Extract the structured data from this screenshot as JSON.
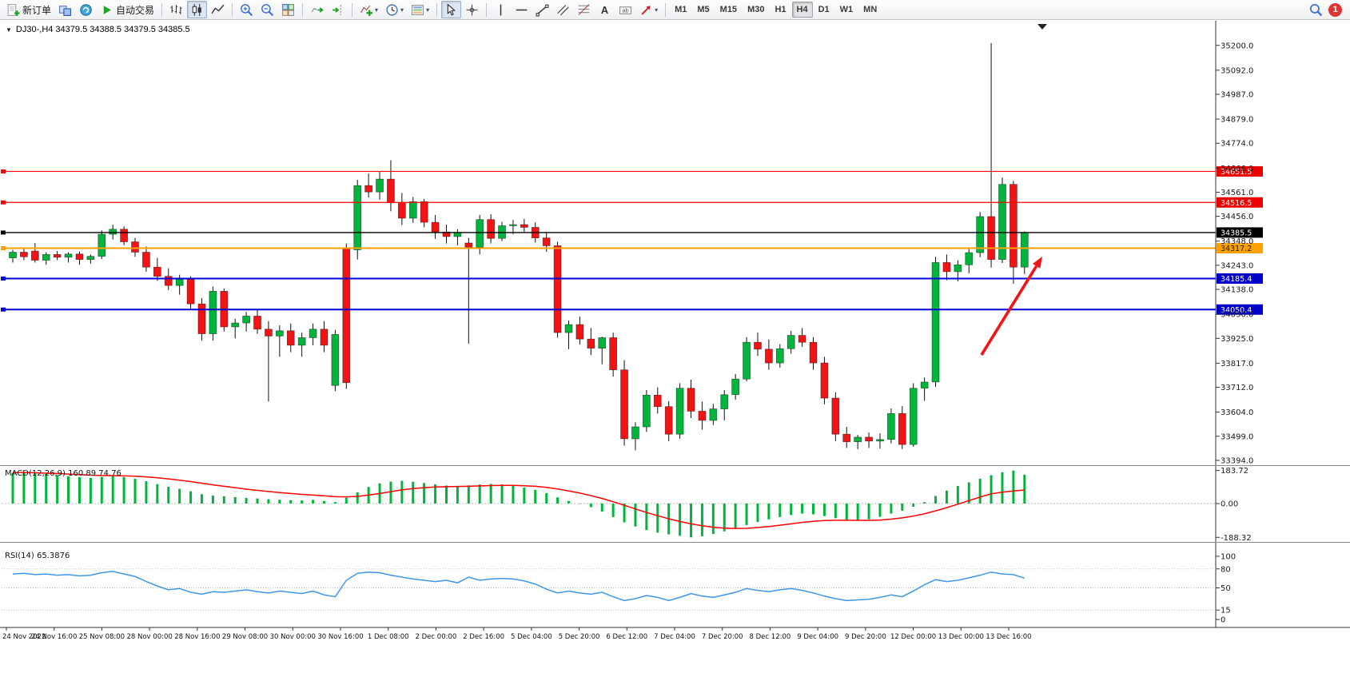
{
  "toolbar": {
    "new_order_label": "新订单",
    "autotrading_label": "自动交易",
    "timeframes": [
      "M1",
      "M5",
      "M15",
      "M30",
      "H1",
      "H4",
      "D1",
      "W1",
      "MN"
    ],
    "active_timeframe": "H4",
    "notification_count": "1"
  },
  "chart": {
    "title_text": "DJ30-,H4 34379.5 34388.5 34379.5 34385.5"
  },
  "chart_data": {
    "type": "candlestick",
    "symbol": "DJ30-",
    "period": "H4",
    "current_bar": {
      "open": 34379.5,
      "high": 34388.5,
      "low": 34379.5,
      "close": 34385.5
    },
    "ylim": [
      33380,
      35300
    ],
    "colors": {
      "up": "#00b43c",
      "down": "#f21414",
      "wick": "#111111",
      "macd_hist": "#00b43c",
      "macd_signal": "#ff0000",
      "rsi_line": "#3f97e8",
      "arrow": "#f01414"
    },
    "price_axis": {
      "ticks": [
        "35200.0",
        "35092.0",
        "34987.0",
        "34879.0",
        "34774.0",
        "34666.0",
        "34561.0",
        "34456.0",
        "34348.0",
        "34243.0",
        "34138.0",
        "34030.0",
        "33925.0",
        "33817.0",
        "33712.0",
        "33604.0",
        "33499.0",
        "33394.0"
      ]
    },
    "hlines": [
      {
        "price": 34651.5,
        "label": "34651.5",
        "color": "#ff0000",
        "width": 1.2,
        "tag_bg": "#ee0000",
        "tag_fg": "#ffffff"
      },
      {
        "price": 34516.5,
        "label": "34516.5",
        "color": "#ff0000",
        "width": 1.2,
        "tag_bg": "#ee0000",
        "tag_fg": "#ffffff"
      },
      {
        "price": 34385.5,
        "label": "34385.5",
        "color": "#000000",
        "width": 1.3,
        "tag_bg": "#000000",
        "tag_fg": "#ffffff"
      },
      {
        "price": 34317.2,
        "label": "34317.2",
        "color": "#ffa200",
        "width": 2.0,
        "tag_bg": "#ffa200",
        "tag_fg": "#1a1a1a"
      },
      {
        "price": 34185.4,
        "label": "34185.4",
        "color": "#0000d8",
        "width": 2.0,
        "tag_bg": "#0000c8",
        "tag_fg": "#ffffff"
      },
      {
        "price": 34050.4,
        "label": "34050.4",
        "color": "#0000d8",
        "width": 2.0,
        "tag_bg": "#0000c8",
        "tag_fg": "#ffffff"
      }
    ],
    "candles": [
      [
        34275,
        34310,
        34255,
        34300
      ],
      [
        34300,
        34315,
        34265,
        34280
      ],
      [
        34305,
        34340,
        34255,
        34265
      ],
      [
        34265,
        34300,
        34245,
        34290
      ],
      [
        34290,
        34305,
        34265,
        34278
      ],
      [
        34278,
        34300,
        34255,
        34292
      ],
      [
        34292,
        34302,
        34245,
        34268
      ],
      [
        34268,
        34290,
        34250,
        34282
      ],
      [
        34282,
        34395,
        34270,
        34378
      ],
      [
        34378,
        34420,
        34355,
        34400
      ],
      [
        34400,
        34412,
        34330,
        34345
      ],
      [
        34345,
        34362,
        34280,
        34300
      ],
      [
        34300,
        34325,
        34215,
        34235
      ],
      [
        34235,
        34275,
        34175,
        34195
      ],
      [
        34195,
        34230,
        34135,
        34155
      ],
      [
        34155,
        34202,
        34115,
        34182
      ],
      [
        34182,
        34195,
        34055,
        34075
      ],
      [
        34075,
        34100,
        33915,
        33945
      ],
      [
        33945,
        34150,
        33915,
        34130
      ],
      [
        34130,
        34142,
        33955,
        33975
      ],
      [
        33975,
        34010,
        33925,
        33992
      ],
      [
        33992,
        34040,
        33955,
        34022
      ],
      [
        34022,
        34050,
        33945,
        33965
      ],
      [
        33965,
        34000,
        33650,
        33935
      ],
      [
        33935,
        33982,
        33845,
        33958
      ],
      [
        33958,
        33990,
        33865,
        33895
      ],
      [
        33895,
        33950,
        33845,
        33928
      ],
      [
        33928,
        33990,
        33895,
        33965
      ],
      [
        33965,
        34000,
        33865,
        33895
      ],
      [
        33720,
        33962,
        33695,
        33942
      ],
      [
        34320,
        34338,
        33705,
        33732
      ],
      [
        34310,
        34615,
        34268,
        34590
      ],
      [
        34590,
        34642,
        34538,
        34562
      ],
      [
        34562,
        34652,
        34528,
        34618
      ],
      [
        34618,
        34700,
        34478,
        34515
      ],
      [
        34515,
        34558,
        34418,
        34448
      ],
      [
        34448,
        34540,
        34428,
        34520
      ],
      [
        34520,
        34532,
        34408,
        34430
      ],
      [
        34430,
        34462,
        34358,
        34388
      ],
      [
        34388,
        34420,
        34338,
        34368
      ],
      [
        34368,
        34400,
        34330,
        34386
      ],
      [
        34340,
        34362,
        33902,
        34322
      ],
      [
        34322,
        34462,
        34290,
        34442
      ],
      [
        34442,
        34465,
        34338,
        34360
      ],
      [
        34360,
        34432,
        34348,
        34415
      ],
      [
        34415,
        34440,
        34378,
        34420
      ],
      [
        34420,
        34445,
        34388,
        34408
      ],
      [
        34408,
        34430,
        34342,
        34362
      ],
      [
        34362,
        34385,
        34302,
        34328
      ],
      [
        34328,
        34345,
        33928,
        33950
      ],
      [
        33950,
        34002,
        33878,
        33985
      ],
      [
        33985,
        34020,
        33898,
        33922
      ],
      [
        33922,
        33970,
        33852,
        33882
      ],
      [
        33882,
        33932,
        33812,
        33928
      ],
      [
        33928,
        33950,
        33758,
        33788
      ],
      [
        33788,
        33830,
        33458,
        33488
      ],
      [
        33488,
        33560,
        33438,
        33540
      ],
      [
        33540,
        33700,
        33518,
        33678
      ],
      [
        33678,
        33712,
        33598,
        33628
      ],
      [
        33628,
        33652,
        33478,
        33508
      ],
      [
        33508,
        33730,
        33488,
        33708
      ],
      [
        33708,
        33745,
        33578,
        33608
      ],
      [
        33608,
        33650,
        33528,
        33568
      ],
      [
        33568,
        33640,
        33548,
        33618
      ],
      [
        33618,
        33700,
        33568,
        33680
      ],
      [
        33680,
        33770,
        33658,
        33748
      ],
      [
        33748,
        33930,
        33738,
        33908
      ],
      [
        33908,
        33950,
        33848,
        33878
      ],
      [
        33878,
        33920,
        33788,
        33818
      ],
      [
        33818,
        33900,
        33798,
        33880
      ],
      [
        33880,
        33958,
        33858,
        33938
      ],
      [
        33938,
        33970,
        33888,
        33908
      ],
      [
        33908,
        33930,
        33788,
        33818
      ],
      [
        33818,
        33845,
        33638,
        33665
      ],
      [
        33665,
        33690,
        33478,
        33508
      ],
      [
        33508,
        33540,
        33448,
        33475
      ],
      [
        33475,
        33505,
        33443,
        33495
      ],
      [
        33495,
        33515,
        33448,
        33478
      ],
      [
        33478,
        33512,
        33445,
        33485
      ],
      [
        33485,
        33620,
        33468,
        33598
      ],
      [
        33598,
        33630,
        33443,
        33463
      ],
      [
        33463,
        33730,
        33453,
        33708
      ],
      [
        33708,
        33755,
        33653,
        33735
      ],
      [
        33735,
        34280,
        33713,
        34255
      ],
      [
        34255,
        34290,
        34178,
        34215
      ],
      [
        34215,
        34265,
        34173,
        34245
      ],
      [
        34245,
        34320,
        34208,
        34298
      ],
      [
        34298,
        34475,
        34278,
        34455
      ],
      [
        34455,
        35210,
        34233,
        34268
      ],
      [
        34268,
        34625,
        34253,
        34595
      ],
      [
        34595,
        34610,
        34163,
        34235
      ],
      [
        34235,
        34390,
        34205,
        34385.5
      ]
    ],
    "time_labels": [
      "24 Nov 2022",
      "24 Nov 16:00",
      "25 Nov 08:00",
      "28 Nov 00:00",
      "28 Nov 16:00",
      "29 Nov 08:00",
      "30 Nov 00:00",
      "30 Nov 16:00",
      "1 Dec 08:00",
      "2 Dec 00:00",
      "2 Dec 16:00",
      "5 Dec 04:00",
      "5 Dec 20:00",
      "6 Dec 12:00",
      "7 Dec 04:00",
      "7 Dec 20:00",
      "8 Dec 12:00",
      "9 Dec 04:00",
      "9 Dec 20:00",
      "12 Dec 00:00",
      "13 Dec 00:00",
      "13 Dec 16:00"
    ],
    "macd": {
      "label": "MACD(12,26,9) 160.89 74.76",
      "axis_labels": [
        "183.72",
        "0.00",
        "-188.32"
      ],
      "axis_values": [
        183.72,
        0,
        -188.32
      ],
      "ylim": [
        -205,
        200
      ],
      "hist": [
        170,
        172,
        168,
        164,
        158,
        152,
        147,
        143,
        148,
        154,
        147,
        138,
        124,
        108,
        93,
        82,
        68,
        52,
        44,
        40,
        36,
        31,
        28,
        24,
        21,
        19,
        17,
        20,
        14,
        8,
        32,
        62,
        92,
        112,
        122,
        126,
        121,
        114,
        107,
        100,
        96,
        101,
        106,
        109,
        106,
        99,
        89,
        76,
        58,
        34,
        14,
        -2,
        -20,
        -45,
        -75,
        -105,
        -128,
        -148,
        -162,
        -172,
        -180,
        -188.32,
        -182,
        -170,
        -155,
        -138,
        -120,
        -103,
        -88,
        -75,
        -64,
        -56,
        -60,
        -70,
        -82,
        -92,
        -95,
        -88,
        -74,
        -56,
        -40,
        -18,
        8,
        42,
        72,
        98,
        118,
        138,
        158,
        174,
        183.72,
        160.89
      ],
      "signal": [
        173,
        172,
        171,
        169,
        167,
        164,
        161,
        158,
        156,
        155,
        154,
        152,
        148,
        143,
        137,
        130,
        122,
        113,
        104,
        96,
        88,
        80,
        73,
        67,
        61,
        56,
        51,
        47,
        43,
        38,
        37,
        40,
        47,
        56,
        66,
        76,
        83,
        88,
        92,
        94,
        95,
        96,
        98,
        100,
        101,
        101,
        99,
        96,
        90,
        81,
        70,
        58,
        44,
        28,
        10,
        -10,
        -30,
        -50,
        -68,
        -85,
        -100,
        -113,
        -124,
        -132,
        -137,
        -139,
        -138,
        -134,
        -128,
        -121,
        -113,
        -105,
        -99,
        -95,
        -93,
        -93,
        -94,
        -94,
        -92,
        -87,
        -80,
        -70,
        -57,
        -41,
        -23,
        -4,
        16,
        36,
        54,
        63,
        70,
        74.76
      ]
    },
    "rsi": {
      "label": "RSI(14) 65.3876",
      "value": 65.3876,
      "axis_labels": [
        "100",
        "80",
        "50",
        "15",
        "0"
      ],
      "axis_values": [
        100,
        80,
        50,
        15,
        0
      ],
      "levels": [
        80,
        50,
        15
      ],
      "ylim": [
        -10,
        110
      ],
      "series": [
        72,
        73,
        71,
        72,
        70,
        71,
        69,
        70,
        74,
        76,
        72,
        68,
        60,
        53,
        47,
        49,
        43,
        40,
        44,
        43,
        45,
        47,
        44,
        42,
        45,
        43,
        41,
        45,
        39,
        36,
        62,
        73,
        75,
        74,
        70,
        67,
        64,
        62,
        60,
        62,
        58,
        67,
        62,
        64,
        65,
        64,
        61,
        56,
        48,
        42,
        45,
        42,
        40,
        43,
        36,
        30,
        33,
        38,
        35,
        30,
        35,
        41,
        37,
        35,
        39,
        43,
        49,
        46,
        44,
        47,
        49,
        46,
        42,
        37,
        33,
        30,
        31,
        32,
        35,
        39,
        36,
        45,
        55,
        63,
        60,
        62,
        66,
        70,
        75,
        72,
        71,
        65.39
      ]
    },
    "annotations": [
      {
        "type": "arrow",
        "from": [
          1228,
          418
        ],
        "to": [
          1304,
          295
        ],
        "color": "#f01414"
      }
    ]
  }
}
